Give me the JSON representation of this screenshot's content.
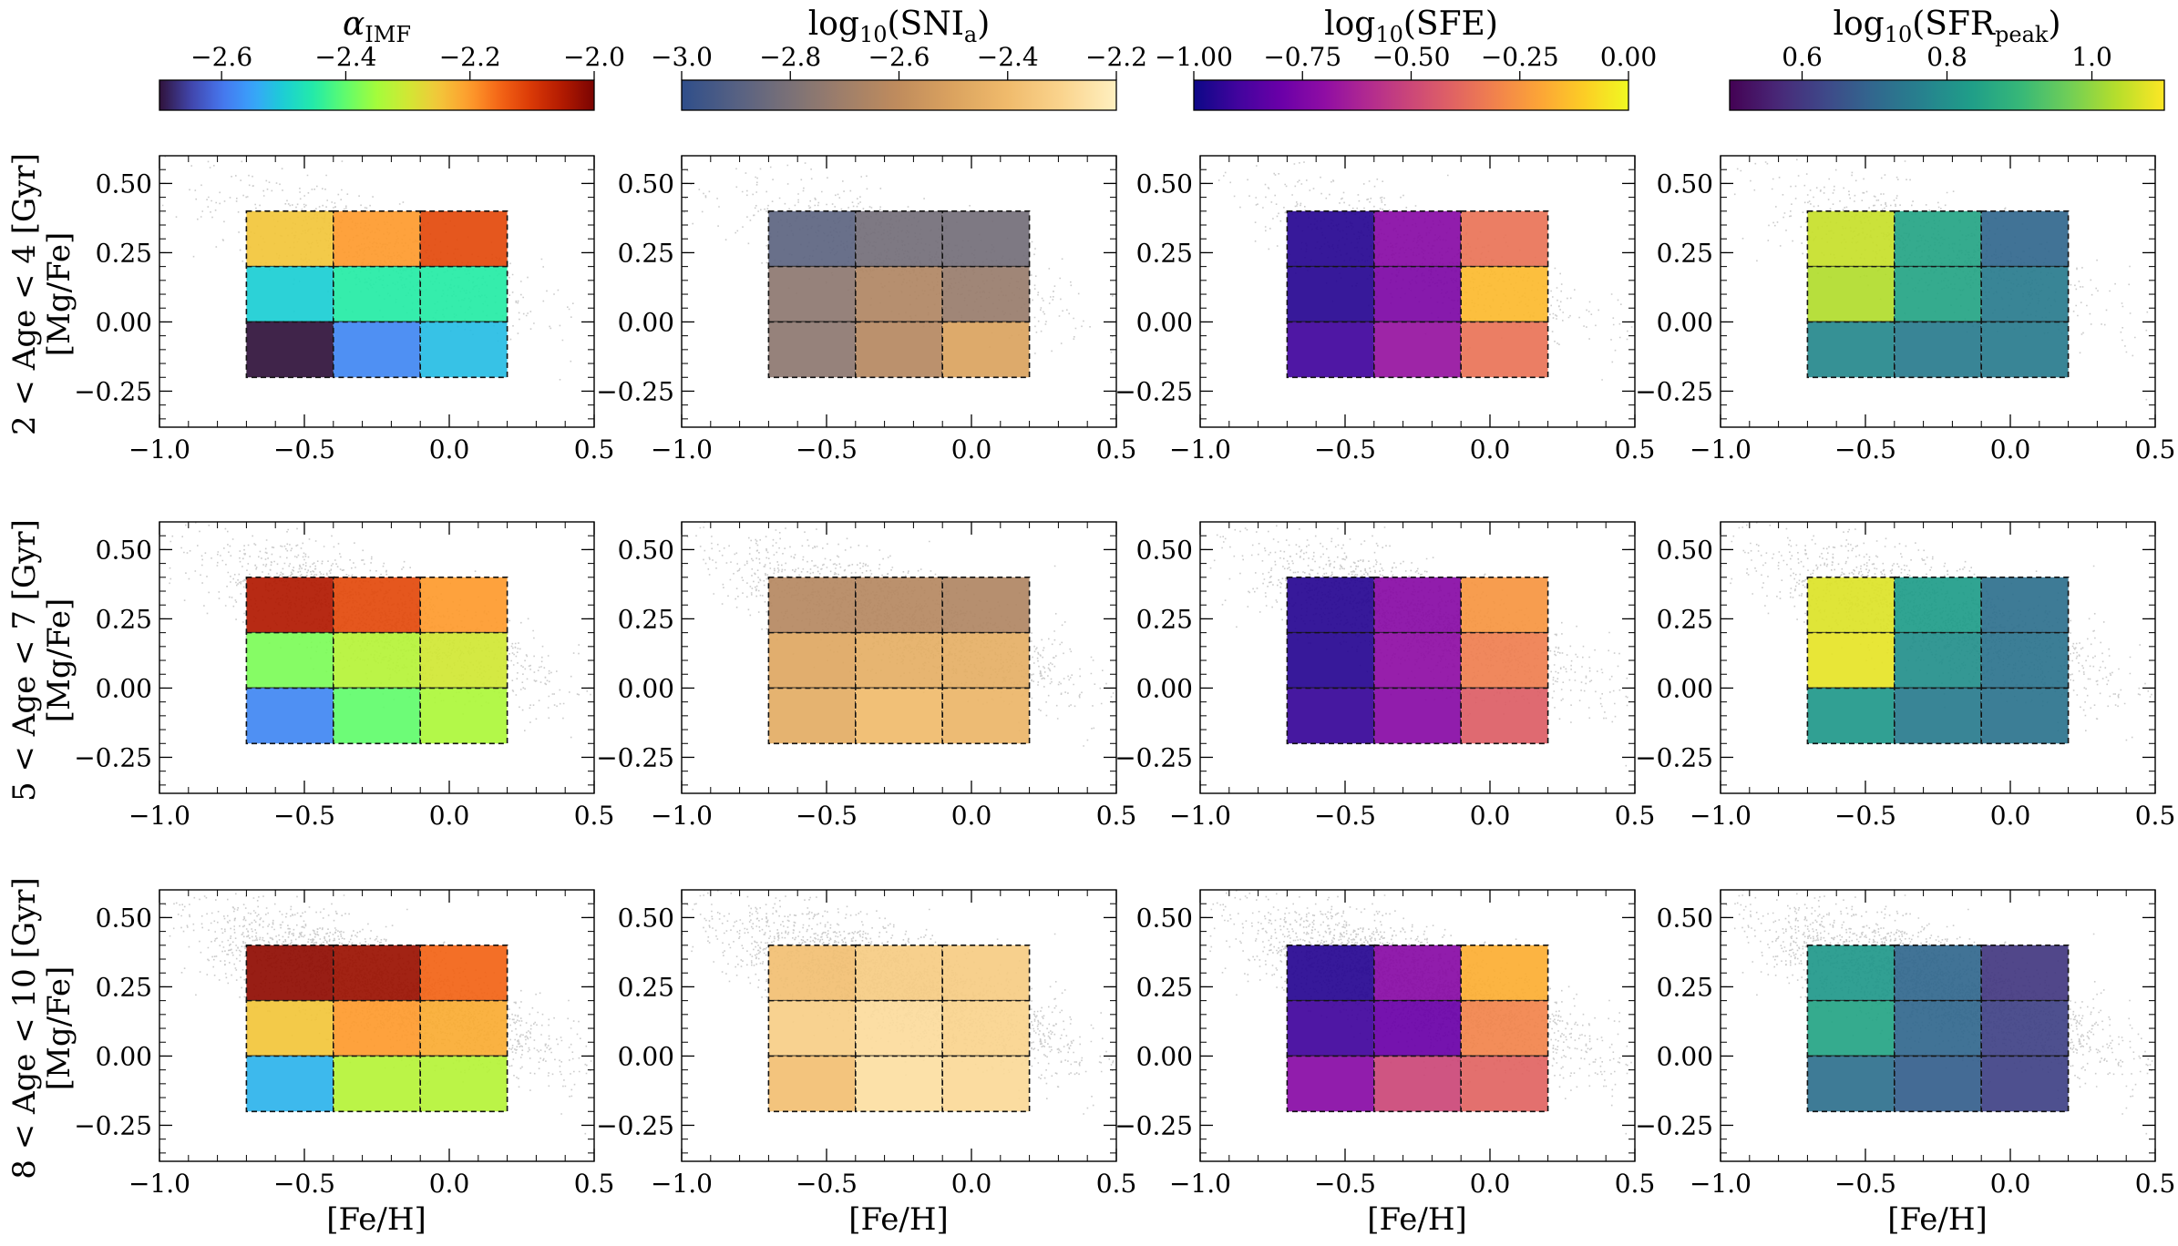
{
  "figure": {
    "row_labels": [
      "2 < Age < 4 [Gyr]",
      "5 < Age < 7 [Gyr]",
      "8 < Age < 10 [Gyr]"
    ],
    "ylabel": "[Mg/Fe]",
    "xlabel": "[Fe/H]"
  },
  "colorbars": [
    {
      "id": "imf",
      "title_main": "α",
      "title_sub": "IMF",
      "title_tail": "",
      "cmap": "turbo",
      "range": [
        -2.7,
        -2.0
      ],
      "ticks": [
        -2.6,
        -2.4,
        -2.2,
        -2.0
      ],
      "tick_labels": [
        "−2.6",
        "−2.4",
        "−2.2",
        "−2.0"
      ]
    },
    {
      "id": "snia",
      "title_main": "log",
      "title_sub": "10",
      "title_tail": "(SNI",
      "title_sub2": "a",
      "title_end": ")",
      "cmap": "cividis-like",
      "range": [
        -3.0,
        -2.2
      ],
      "ticks": [
        -3.0,
        -2.8,
        -2.6,
        -2.4,
        -2.2
      ],
      "tick_labels": [
        "−3.0",
        "−2.8",
        "−2.6",
        "−2.4",
        "−2.2"
      ]
    },
    {
      "id": "sfe",
      "title_main": "log",
      "title_sub": "10",
      "title_tail": "(SFE)",
      "cmap": "plasma",
      "range": [
        -1.0,
        0.0
      ],
      "ticks": [
        -1.0,
        -0.75,
        -0.5,
        -0.25,
        0.0
      ],
      "tick_labels": [
        "−1.00",
        "−0.75",
        "−0.50",
        "−0.25",
        "0.00"
      ]
    },
    {
      "id": "sfr",
      "title_main": "log",
      "title_sub": "10",
      "title_tail": "(SFR",
      "title_sub2": "peak",
      "title_end": ")",
      "cmap": "viridis",
      "range": [
        0.5,
        1.1
      ],
      "ticks": [
        0.6,
        0.8,
        1.0
      ],
      "tick_labels": [
        "0.6",
        "0.8",
        "1.0"
      ]
    }
  ],
  "chart_data": {
    "type": "heatmap",
    "description": "3x3 grid of binned cells over [Fe/H] x [Mg/Fe] with scatter of stars, 3 age rows x 4 parameters",
    "xlim": [
      -1.0,
      0.5
    ],
    "ylim": [
      -0.38,
      0.6
    ],
    "xticks": [
      -1.0,
      -0.5,
      0.0,
      0.5
    ],
    "xtick_labels": [
      "−1.0",
      "−0.5",
      "0.0",
      "0.5"
    ],
    "yticks": [
      -0.25,
      0.0,
      0.25,
      0.5
    ],
    "ytick_labels": [
      "−0.25",
      "0.00",
      "0.25",
      "0.50"
    ],
    "feh_bin_edges": [
      -0.7,
      -0.4,
      -0.1,
      0.2
    ],
    "mgfe_bin_edges": [
      -0.2,
      0.0,
      0.2,
      0.4
    ],
    "cells_note": "cells[row][param] = 3x3 values, outer index = [Mg/Fe] bin from top (0.2-0.4) to bottom (-0.2-0.0), inner index = [Fe/H] bin left to right",
    "cells": [
      [
        [
          [
            -2.25,
            -2.2,
            -2.12
          ],
          [
            -2.5,
            -2.45,
            -2.45
          ],
          [
            -2.7,
            -2.58,
            -2.52
          ]
        ],
        [
          [
            -2.88,
            -2.82,
            -2.82
          ],
          [
            -2.75,
            -2.65,
            -2.72
          ],
          [
            -2.75,
            -2.63,
            -2.5
          ]
        ],
        [
          [
            -0.95,
            -0.72,
            -0.35
          ],
          [
            -0.95,
            -0.75,
            -0.15
          ],
          [
            -0.9,
            -0.68,
            -0.35
          ]
        ],
        [
          [
            1.05,
            0.85,
            0.7
          ],
          [
            1.03,
            0.85,
            0.75
          ],
          [
            0.78,
            0.75,
            0.75
          ]
        ]
      ],
      [
        [
          [
            -2.05,
            -2.12,
            -2.2
          ],
          [
            -2.38,
            -2.33,
            -2.3
          ],
          [
            -2.58,
            -2.4,
            -2.34
          ]
        ],
        [
          [
            -2.63,
            -2.63,
            -2.65
          ],
          [
            -2.48,
            -2.45,
            -2.45
          ],
          [
            -2.46,
            -2.4,
            -2.42
          ]
        ],
        [
          [
            -0.95,
            -0.72,
            -0.25
          ],
          [
            -0.95,
            -0.7,
            -0.32
          ],
          [
            -0.92,
            -0.72,
            -0.42
          ]
        ],
        [
          [
            1.07,
            0.83,
            0.72
          ],
          [
            1.08,
            0.8,
            0.73
          ],
          [
            0.82,
            0.75,
            0.73
          ]
        ]
      ],
      [
        [
          [
            -2.02,
            -2.03,
            -2.15
          ],
          [
            -2.25,
            -2.2,
            -2.22
          ],
          [
            -2.53,
            -2.33,
            -2.33
          ]
        ],
        [
          [
            -2.38,
            -2.33,
            -2.33
          ],
          [
            -2.32,
            -2.27,
            -2.3
          ],
          [
            -2.38,
            -2.26,
            -2.28
          ]
        ],
        [
          [
            -0.95,
            -0.72,
            -0.18
          ],
          [
            -0.9,
            -0.8,
            -0.3
          ],
          [
            -0.72,
            -0.5,
            -0.4
          ]
        ],
        [
          [
            0.82,
            0.7,
            0.6
          ],
          [
            0.85,
            0.7,
            0.62
          ],
          [
            0.72,
            0.68,
            0.62
          ]
        ]
      ]
    ]
  }
}
